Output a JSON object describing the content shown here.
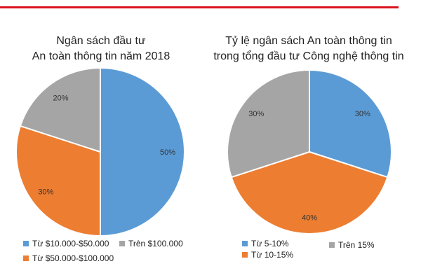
{
  "chart_data": [
    {
      "type": "pie",
      "title_lines": [
        "Ngân sách đầu tư",
        "An toàn thông tin năm 2018"
      ],
      "slices": [
        {
          "label": "Từ $10.000-$50.000",
          "value": 50,
          "display": "50%",
          "color": "#5b9bd5"
        },
        {
          "label": "Từ $50.000-$100.000",
          "value": 30,
          "display": "30%",
          "color": "#ed7d31"
        },
        {
          "label": "Trên $100.000",
          "value": 20,
          "display": "20%",
          "color": "#a5a5a5"
        }
      ],
      "legend_placement": "bottom"
    },
    {
      "type": "pie",
      "title_lines": [
        "Tỷ lệ ngân sách An toàn thông tin",
        "trong tổng đầu tư Công nghệ thông tin"
      ],
      "slices": [
        {
          "label": "Từ 5-10%",
          "value": 30,
          "display": "30%",
          "color": "#5b9bd5"
        },
        {
          "label": "Từ 10-15%",
          "value": 40,
          "display": "40%",
          "color": "#ed7d31"
        },
        {
          "label": "Trên 15%",
          "value": 30,
          "display": "30%",
          "color": "#a5a5a5"
        }
      ],
      "legend_placement": "bottom"
    }
  ],
  "colors": {
    "accent_rule": "#d9151d",
    "slice_border": "#ffffff"
  }
}
